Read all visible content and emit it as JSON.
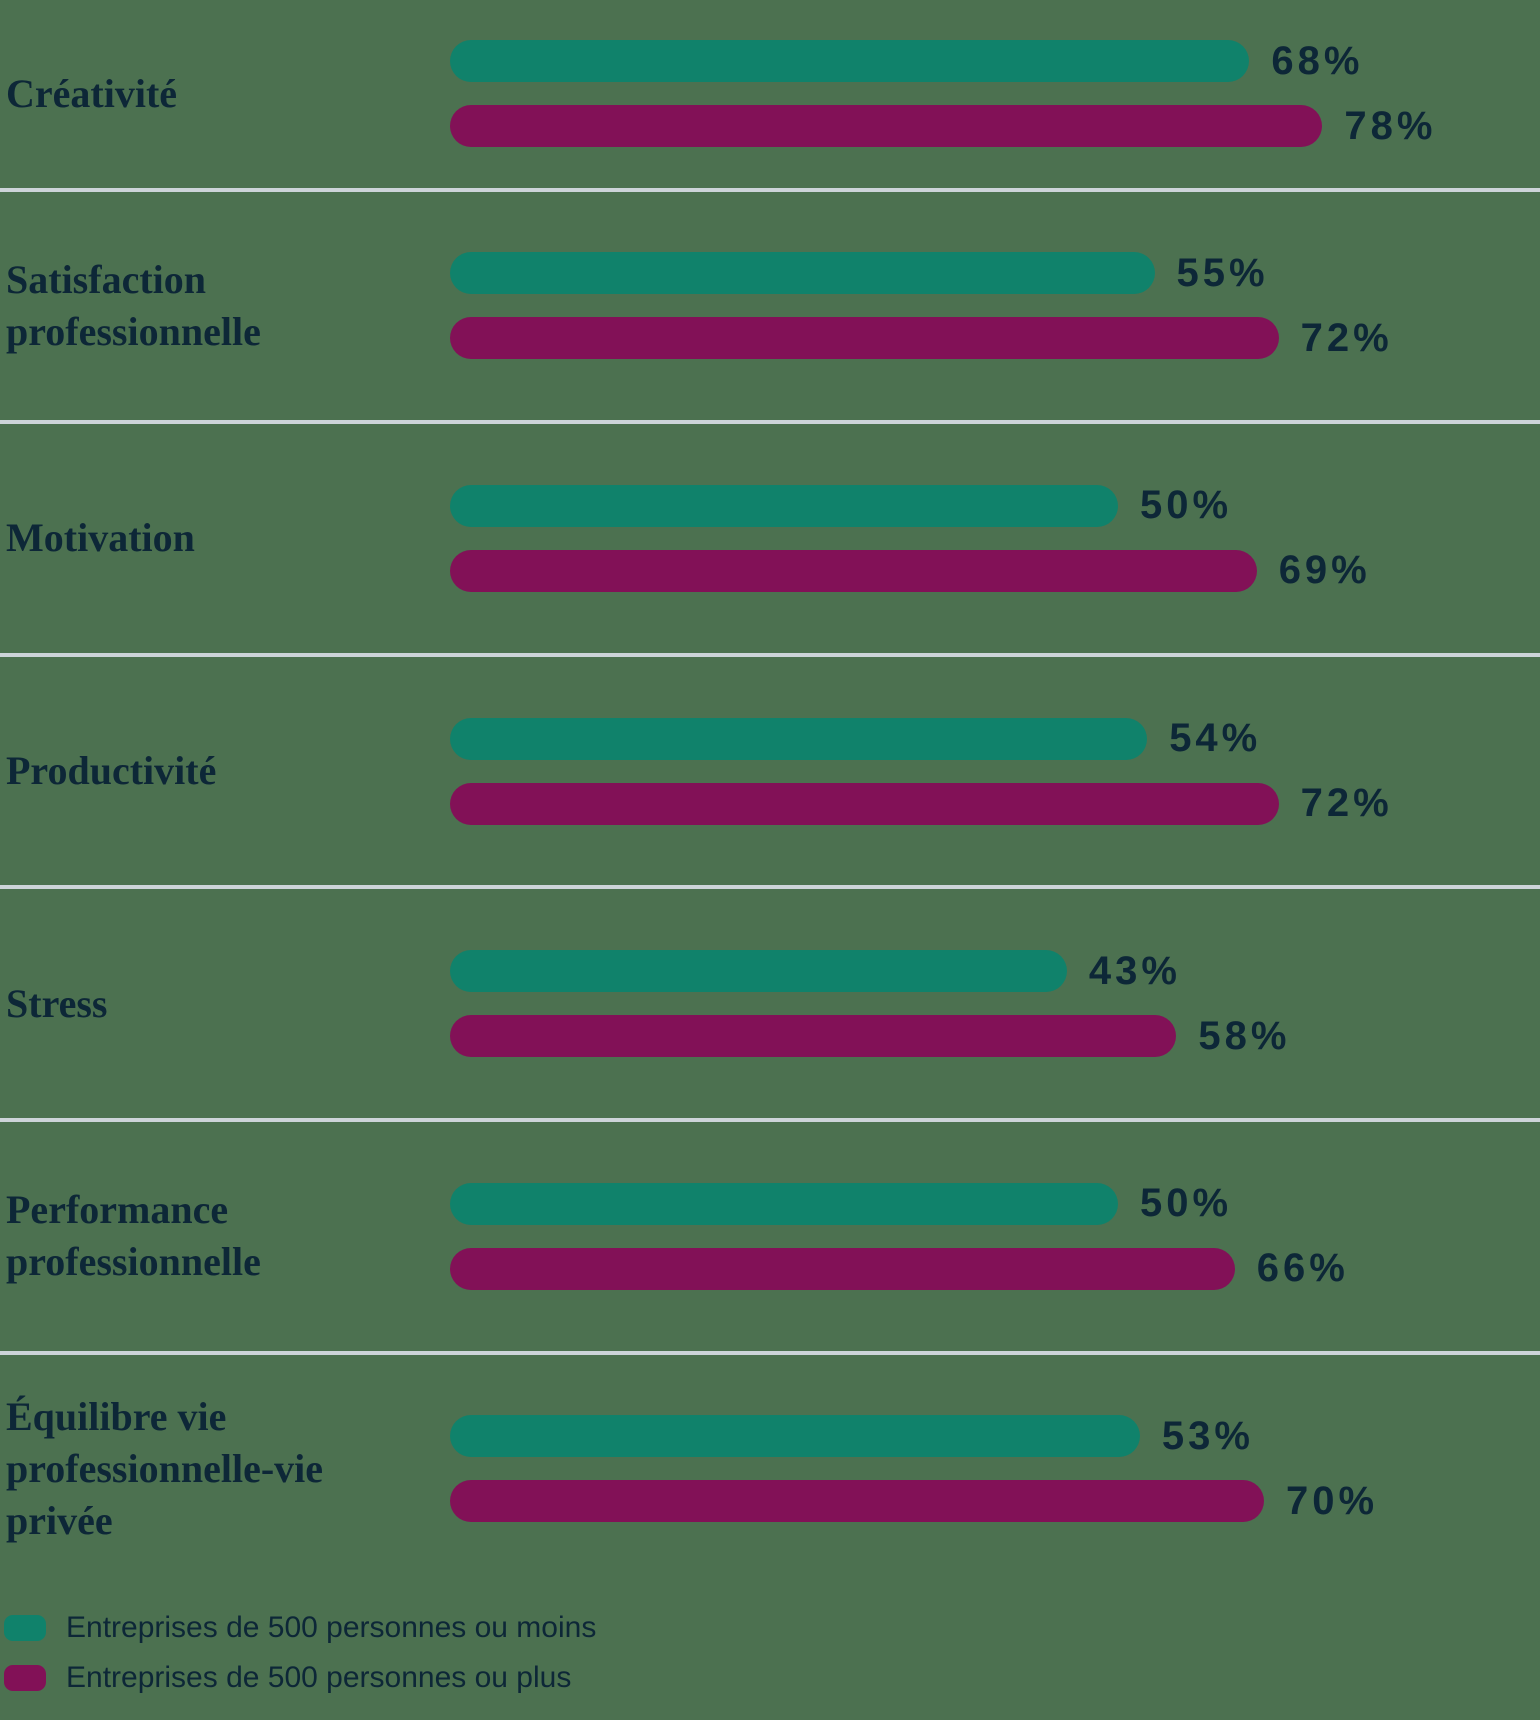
{
  "chart_data": {
    "type": "bar",
    "orientation": "horizontal",
    "unit": "%",
    "title": "",
    "categories": [
      "Créativité",
      "Satisfaction professionnelle",
      "Motivation",
      "Productivité",
      "Stress",
      "Performance professionnelle",
      "Équilibre vie professionnelle-vie privée"
    ],
    "series": [
      {
        "name": "Entreprises de 500 personnes ou moins",
        "color": "#10826B",
        "values": [
          68,
          55,
          50,
          54,
          43,
          50,
          53
        ],
        "value_labels": [
          "68%",
          "55%",
          "50%",
          "54%",
          "43%",
          "50%",
          "53%"
        ]
      },
      {
        "name": "Entreprises de 500 personnes ou plus",
        "color": "#821157",
        "values": [
          78,
          72,
          69,
          72,
          58,
          66,
          70
        ],
        "value_labels": [
          "78%",
          "72%",
          "69%",
          "72%",
          "58%",
          "66%",
          "70%"
        ]
      }
    ],
    "legend_position": "bottom-left",
    "grid": "horizontal-separators-between-categories",
    "colors": {
      "background": "#4C7150",
      "text": "#0D2737",
      "separator": "#CDD4D9"
    }
  }
}
